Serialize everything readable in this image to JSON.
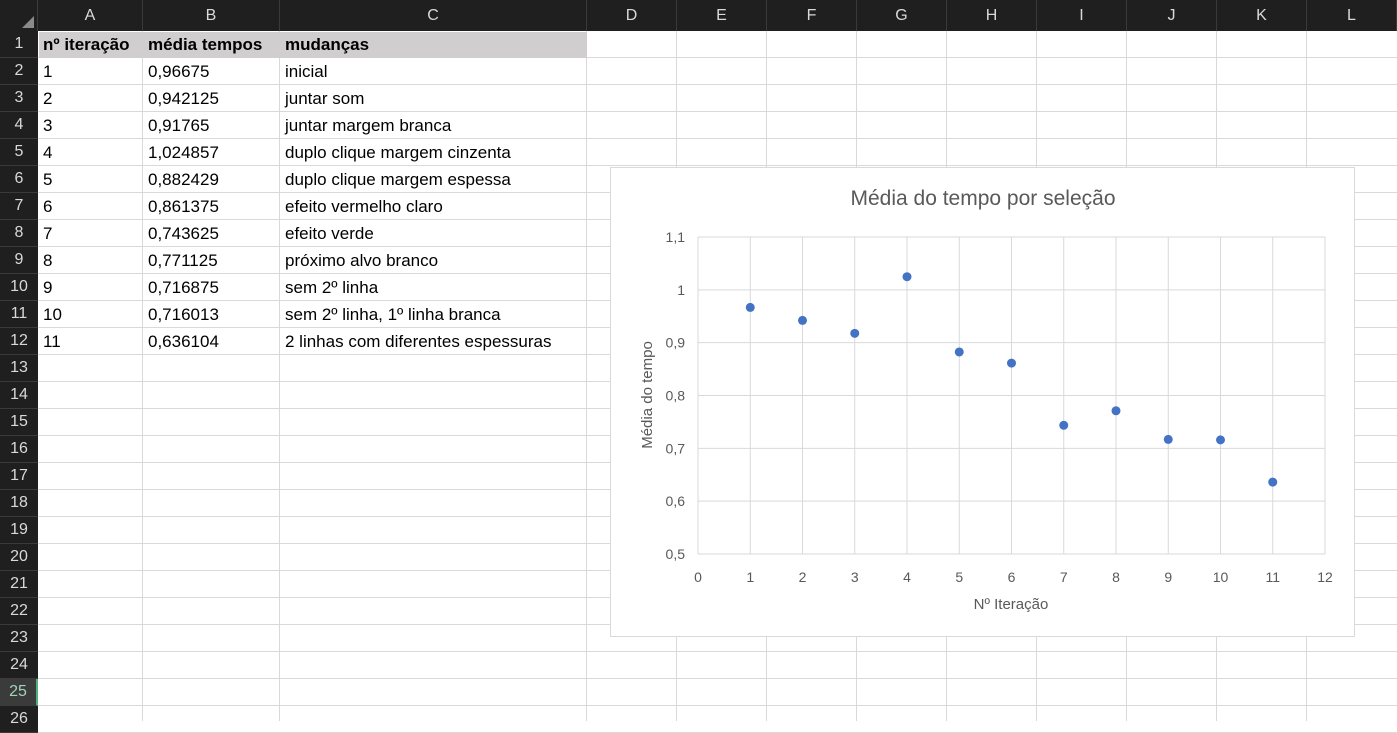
{
  "spreadsheet": {
    "columns": [
      "A",
      "B",
      "C",
      "D",
      "E",
      "F",
      "G",
      "H",
      "I",
      "J",
      "K",
      "L"
    ],
    "rows": [
      "1",
      "2",
      "3",
      "4",
      "5",
      "6",
      "7",
      "8",
      "9",
      "10",
      "11",
      "12",
      "13",
      "14",
      "15",
      "16",
      "17",
      "18",
      "19",
      "20",
      "21",
      "22",
      "23",
      "24",
      "25",
      "26"
    ],
    "selected_row": "25",
    "headers": {
      "a": "nº iteração",
      "b": "média tempos",
      "c": "mudanças"
    },
    "data_rows": [
      {
        "a": "1",
        "b": "0,96675",
        "c": "inicial"
      },
      {
        "a": "2",
        "b": "0,942125",
        "c": "juntar som"
      },
      {
        "a": "3",
        "b": "0,91765",
        "c": "juntar margem branca"
      },
      {
        "a": "4",
        "b": "1,024857",
        "c": "duplo clique margem cinzenta"
      },
      {
        "a": "5",
        "b": "0,882429",
        "c": "duplo clique margem espessa"
      },
      {
        "a": "6",
        "b": "0,861375",
        "c": "efeito vermelho claro"
      },
      {
        "a": "7",
        "b": "0,743625",
        "c": "efeito verde"
      },
      {
        "a": "8",
        "b": "0,771125",
        "c": "próximo alvo branco"
      },
      {
        "a": "9",
        "b": "0,716875",
        "c": "sem 2º linha"
      },
      {
        "a": "10",
        "b": "0,716013",
        "c": "sem 2º linha, 1º linha branca"
      },
      {
        "a": "11",
        "b": "0,636104",
        "c": "2 linhas com diferentes espessuras"
      }
    ]
  },
  "chart_data": {
    "type": "scatter",
    "title": "Média do tempo por seleção",
    "xlabel": "Nº Iteração",
    "ylabel": "Média do tempo",
    "xlim": [
      0,
      12
    ],
    "ylim": [
      0.5,
      1.1
    ],
    "x_ticks": [
      "0",
      "1",
      "2",
      "3",
      "4",
      "5",
      "6",
      "7",
      "8",
      "9",
      "10",
      "11",
      "12"
    ],
    "y_ticks": [
      "0,5",
      "0,6",
      "0,7",
      "0,8",
      "0,9",
      "1",
      "1,1"
    ],
    "grid": true,
    "marker_color": "#4472c4",
    "x": [
      1,
      2,
      3,
      4,
      5,
      6,
      7,
      8,
      9,
      10,
      11
    ],
    "y": [
      0.96675,
      0.942125,
      0.91765,
      1.024857,
      0.882429,
      0.861375,
      0.743625,
      0.771125,
      0.716875,
      0.716013,
      0.636104
    ]
  }
}
